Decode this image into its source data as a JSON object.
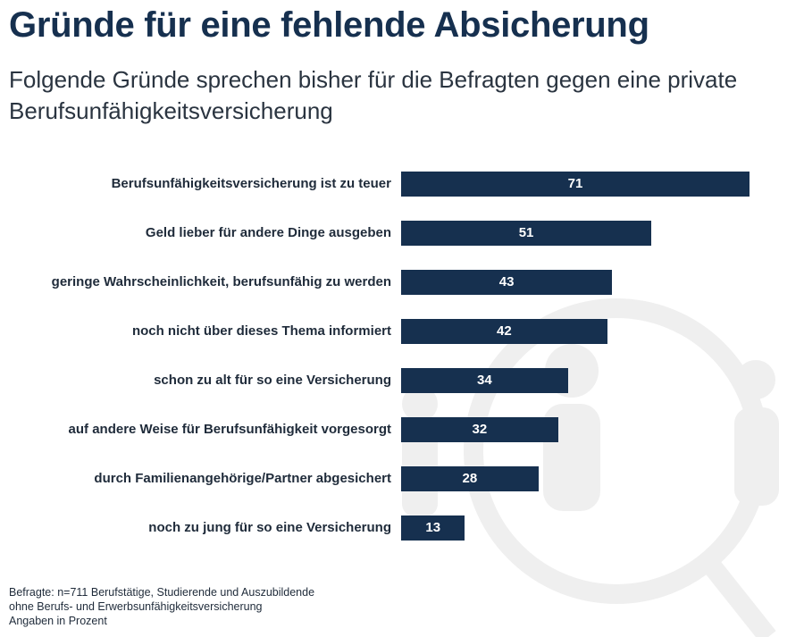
{
  "header": {
    "title": "Gründe für eine fehlende Absicherung",
    "subtitle": "Folgende Gründe sprechen bisher für die Befragten gegen eine private Berufsunfähigkeitsversicherung"
  },
  "chart_data": {
    "type": "bar",
    "orientation": "horizontal",
    "title": "Gründe für eine fehlende Absicherung",
    "subtitle": "Folgende Gründe sprechen bisher für die Befragten gegen eine private Berufsunfähigkeitsversicherung",
    "categories": [
      "Berufsunfähigkeitsversicherung ist zu teuer",
      "Geld lieber für andere Dinge ausgeben",
      "geringe Wahrscheinlichkeit, berufsunfähig zu werden",
      "noch nicht über dieses Thema informiert",
      "schon zu alt für so eine Versicherung",
      "auf andere Weise für Berufsunfähigkeit vorgesorgt",
      "durch Familienangehörige/Partner abgesichert",
      "noch zu jung für so eine Versicherung"
    ],
    "values": [
      71,
      51,
      43,
      42,
      34,
      32,
      28,
      13
    ],
    "xlabel": "",
    "ylabel": "",
    "xlim": [
      0,
      80
    ],
    "grid": false,
    "legend": "none",
    "bar_color": "#16304f"
  },
  "footnote": {
    "lines": [
      "Befragte: n=711 Berufstätige, Studierende und Auszubildende",
      "ohne Berufs- und Erwerbsunfähigkeitsversicherung",
      "Angaben in Prozent"
    ]
  },
  "icons": {
    "watermark": "people-magnifier-icon"
  },
  "colors": {
    "title": "#16304f",
    "bar": "#16304f",
    "bar_text": "#ffffff",
    "watermark": "#efefef"
  }
}
